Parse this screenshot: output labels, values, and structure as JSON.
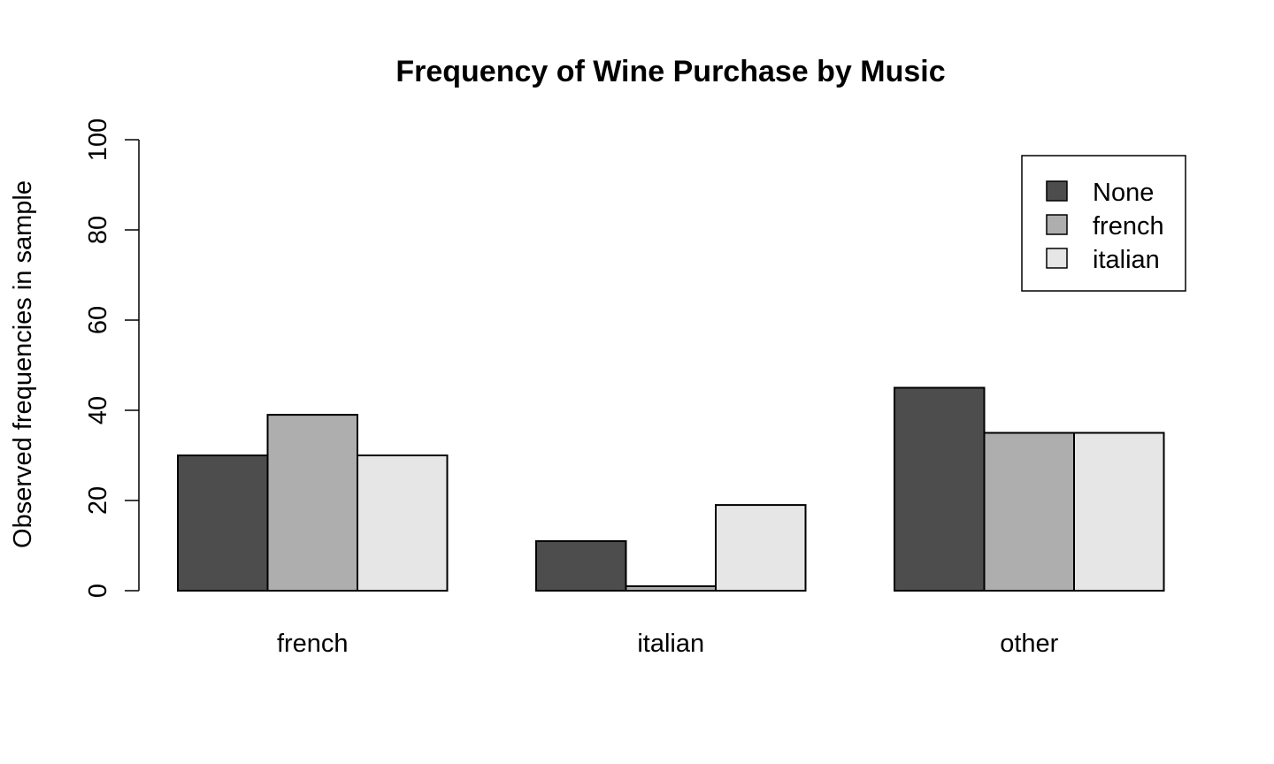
{
  "chart_data": {
    "type": "bar",
    "title": "Frequency of Wine Purchase by Music",
    "xlabel": "",
    "ylabel": "Observed frequencies in sample",
    "categories": [
      "french",
      "italian",
      "other"
    ],
    "series": [
      {
        "name": "None",
        "values": [
          30,
          11,
          45
        ],
        "color": "#4d4d4d"
      },
      {
        "name": "french",
        "values": [
          39,
          1,
          35
        ],
        "color": "#aeaeae"
      },
      {
        "name": "italian",
        "values": [
          30,
          19,
          35
        ],
        "color": "#e6e6e6"
      }
    ],
    "ylim": [
      0,
      100
    ],
    "yticks": [
      "0",
      "20",
      "40",
      "60",
      "80",
      "100"
    ],
    "grid": false,
    "legend_position": "top-right",
    "bar_border_color": "#000000"
  }
}
